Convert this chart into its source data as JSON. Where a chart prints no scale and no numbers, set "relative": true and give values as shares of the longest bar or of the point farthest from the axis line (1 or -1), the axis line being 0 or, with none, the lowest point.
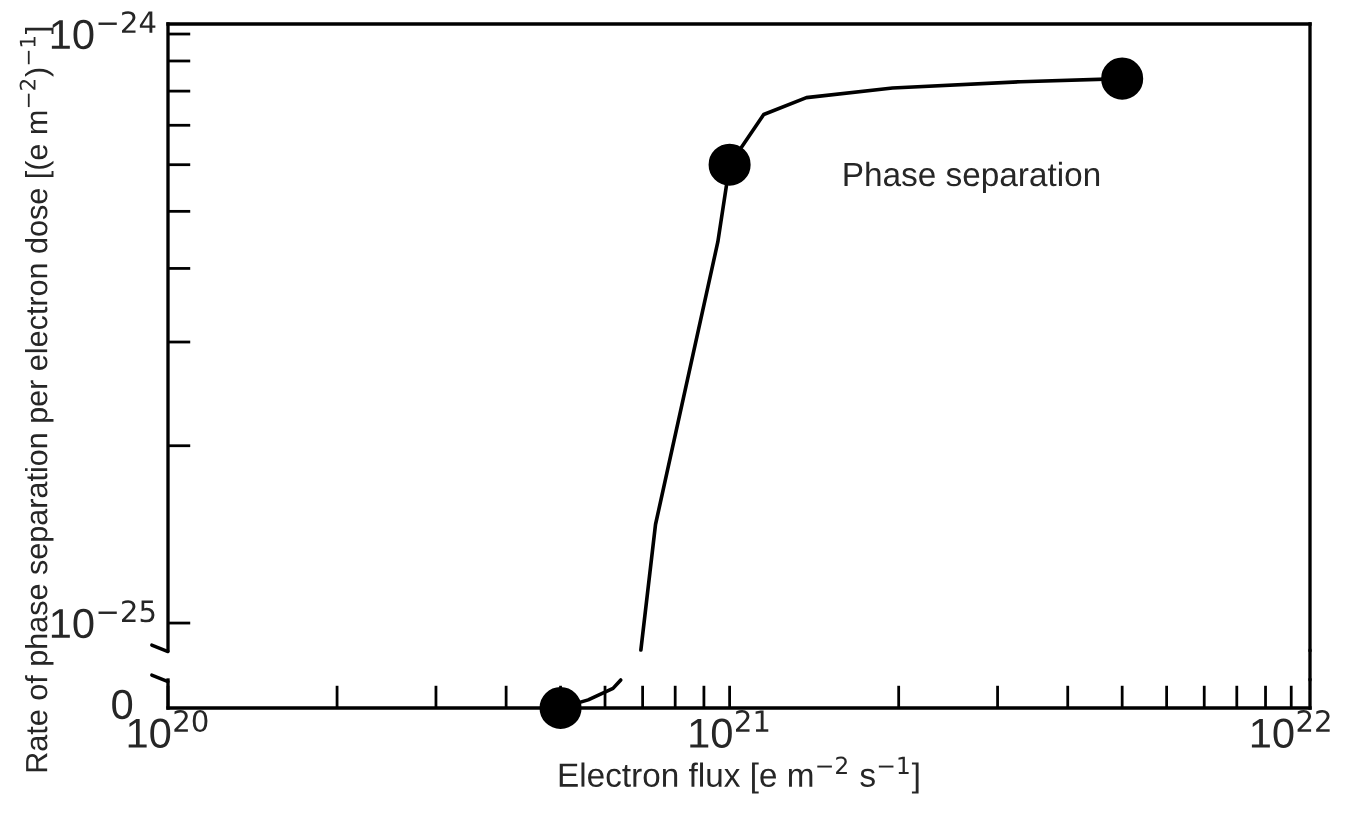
{
  "chart_data": [
    {
      "type": "line",
      "log": "xy",
      "ylabel": "Rate of phase separation per electron dose [(e m$^{−2}$)$^{−1}$]",
      "tick_labels": "y",
      "xlim": [
        1e+20,
        1.08e+22
      ],
      "ylim": [
        9e-26,
        1.04e-24
      ],
      "yticks": [
        {
          "value": 1e-25,
          "label": "10$^{−25}$"
        },
        {
          "value": 2e-25,
          "label": null
        },
        {
          "value": 3e-25,
          "label": null
        },
        {
          "value": 4e-25,
          "label": null
        },
        {
          "value": 5e-25,
          "label": null
        },
        {
          "value": 6e-25,
          "label": null
        },
        {
          "value": 7e-25,
          "label": null
        },
        {
          "value": 8e-25,
          "label": null
        },
        {
          "value": 9e-25,
          "label": null
        },
        {
          "value": 1e-24,
          "label": "10$^{−24}$"
        }
      ],
      "series": [
        {
          "color": "#000000",
          "marker": "none",
          "x": [
            6.95e+20,
            7.38e+20,
            9.53e+20,
            1e+21,
            1.15e+21,
            1.37e+21,
            1.95e+21,
            3.3e+21,
            5e+21
          ],
          "values": [
            9e-26,
            1.47e-25,
            4.44e-25,
            6e-25,
            7.3e-25,
            7.8e-25,
            8.1e-25,
            8.3e-25,
            8.4e-25
          ]
        },
        {
          "type": "scatter",
          "color": "#000000",
          "marker": "circle",
          "x": [
            1e+21,
            5e+21
          ],
          "values": [
            6e-25,
            8.4e-25
          ]
        }
      ],
      "annotations": [
        "Phase separation"
      ]
    },
    {
      "type": "line",
      "log": "x",
      "relative": true,
      "xlabel": "Electron flux [e m$^{−2}$ s$^{−1}$]",
      "xlim": [
        1e+20,
        1.08e+22
      ],
      "xticks": [
        {
          "value": 1e+20,
          "label": "10$^{20}$"
        },
        {
          "value": 2e+20,
          "label": null
        },
        {
          "value": 3e+20,
          "label": null
        },
        {
          "value": 4e+20,
          "label": null
        },
        {
          "value": 5e+20,
          "label": null
        },
        {
          "value": 6e+20,
          "label": null
        },
        {
          "value": 7e+20,
          "label": null
        },
        {
          "value": 8e+20,
          "label": null
        },
        {
          "value": 9e+20,
          "label": null
        },
        {
          "value": 1e+21,
          "label": "10$^{21}$"
        },
        {
          "value": 2e+21,
          "label": null
        },
        {
          "value": 3e+21,
          "label": null
        },
        {
          "value": 4e+21,
          "label": null
        },
        {
          "value": 5e+21,
          "label": null
        },
        {
          "value": 6e+21,
          "label": null
        },
        {
          "value": 7e+21,
          "label": null
        },
        {
          "value": 8e+21,
          "label": null
        },
        {
          "value": 9e+21,
          "label": null
        },
        {
          "value": 1e+22,
          "label": "10$^{22}$"
        }
      ],
      "series": [
        {
          "color": "#000000",
          "marker": "none",
          "x": [
            5e+20,
            5.6e+20,
            6.2e+20,
            6.4e+20
          ],
          "values": [
            0,
            0.29,
            0.7,
            1
          ]
        },
        {
          "type": "scatter",
          "color": "#000000",
          "marker": "circle",
          "x": [
            5e+20
          ],
          "values": [
            0
          ]
        }
      ],
      "annotations": [
        "0"
      ]
    }
  ]
}
